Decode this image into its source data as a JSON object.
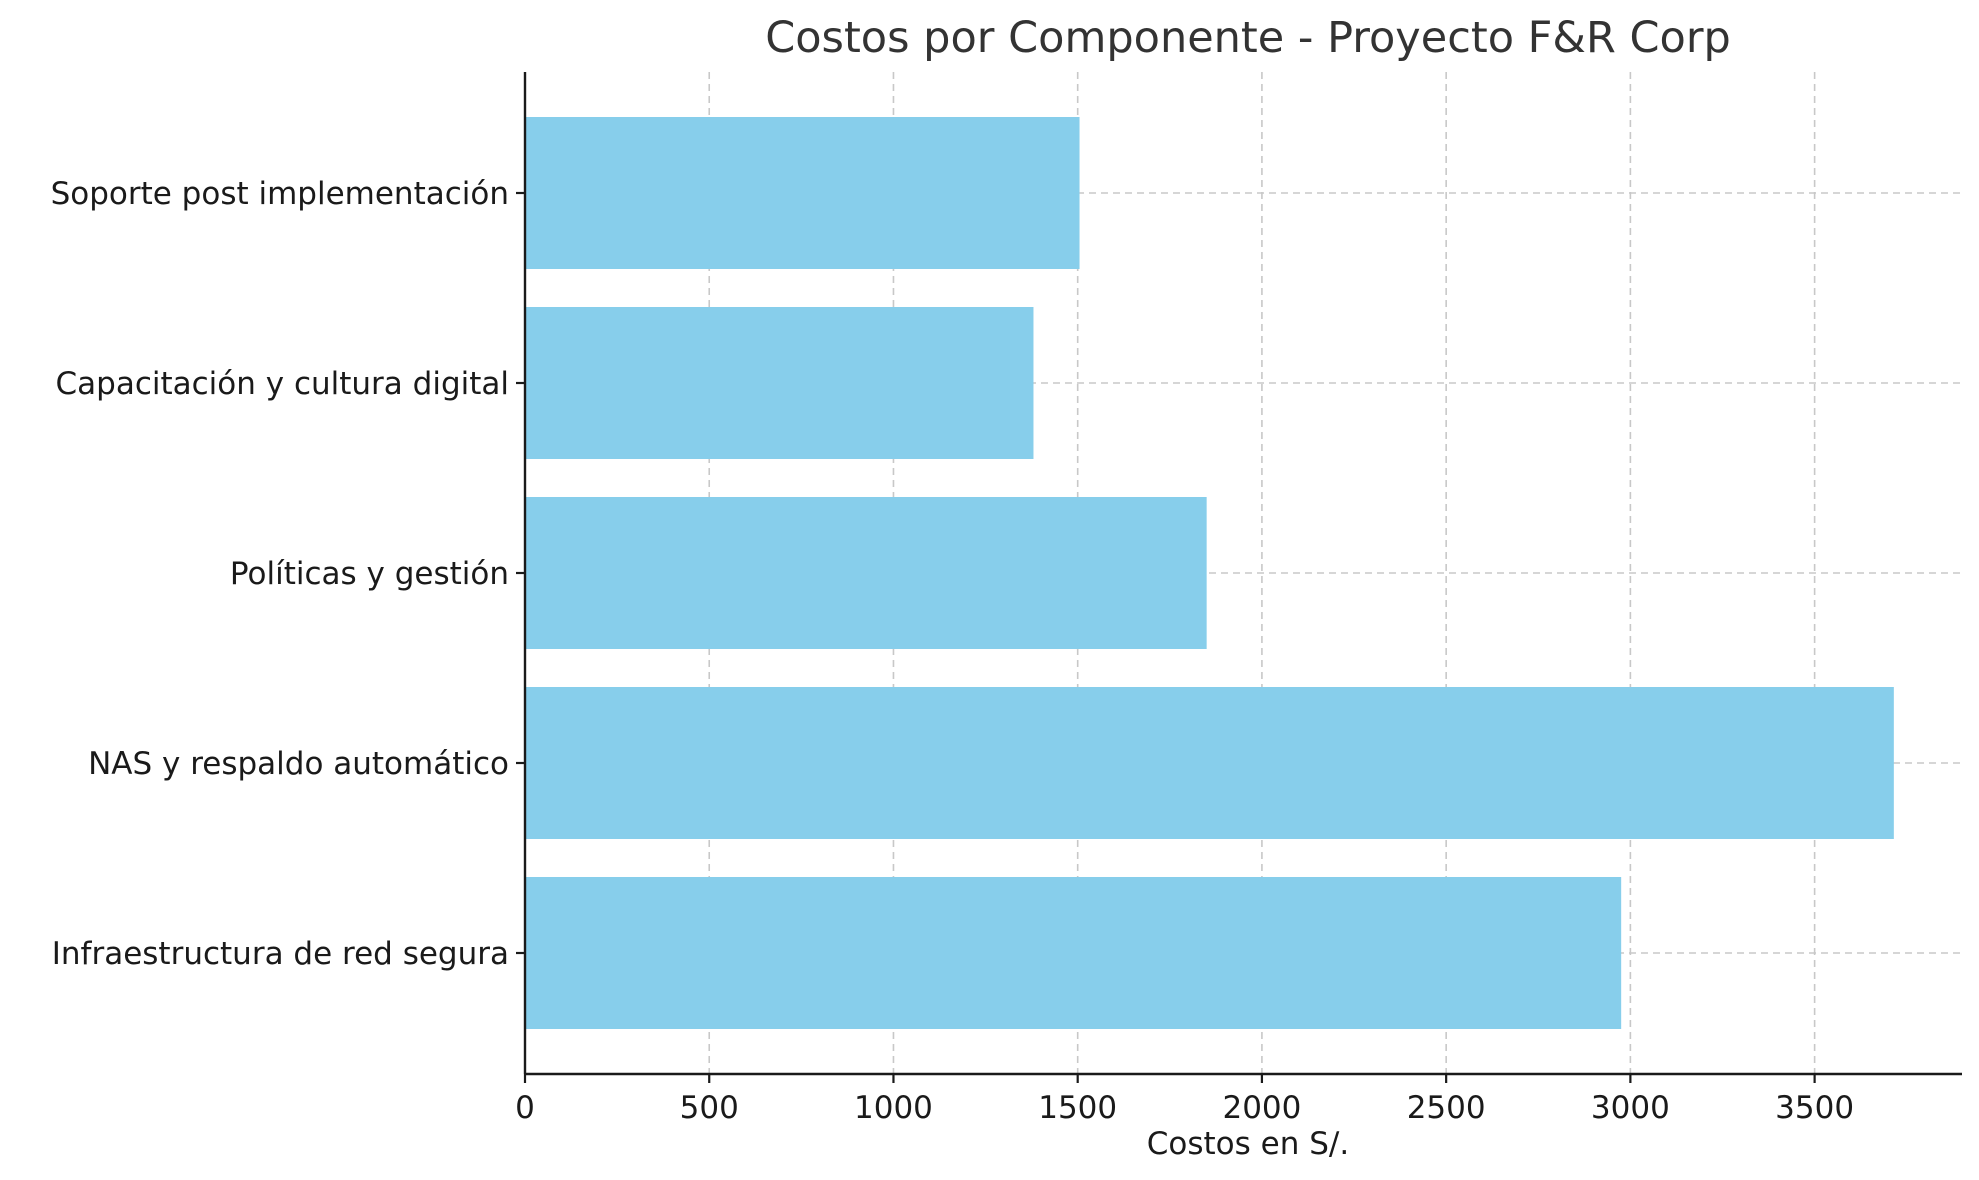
{
  "chart_data": {
    "type": "bar",
    "orientation": "horizontal",
    "title": "Costos por Componente - Proyecto F&R Corp",
    "xlabel": "Costos en S/.",
    "ylabel": "",
    "categories": [
      "Infraestructura de red segura",
      "NAS y respaldo automático",
      "Políticas y gestión",
      "Capacitación y cultura digital",
      "Soporte post implementación"
    ],
    "values": [
      2975,
      3715,
      1850,
      1380,
      1505
    ],
    "xlim": [
      0,
      3900
    ],
    "xticks": [
      0,
      500,
      1000,
      1500,
      2000,
      2500,
      3000,
      3500
    ],
    "grid": true,
    "bar_color": "#87CEEB"
  }
}
